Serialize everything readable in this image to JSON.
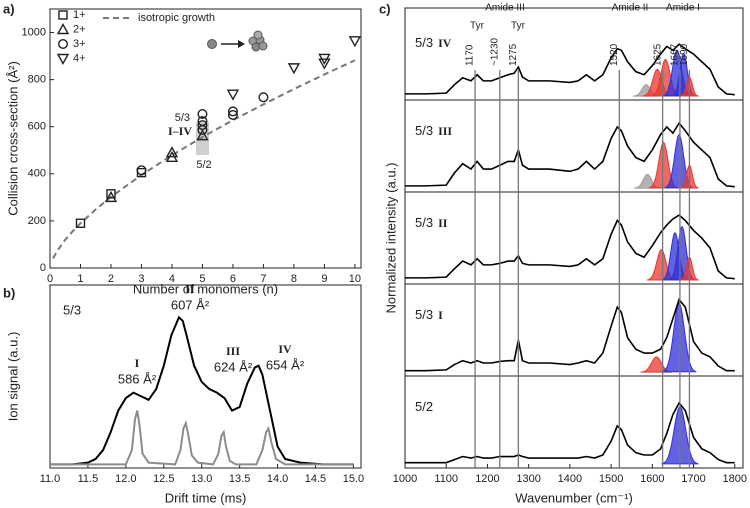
{
  "chart_data": [
    {
      "type": "scatter",
      "panel_label": "a)",
      "xlabel": "Number of monomers (n)",
      "ylabel": "Collision cross-section (Å²)",
      "xlim": [
        0,
        10.2
      ],
      "ylim": [
        0,
        1100
      ],
      "xticks": [
        0,
        1,
        2,
        3,
        4,
        5,
        6,
        7,
        8,
        9,
        10
      ],
      "yticks": [
        0,
        200,
        400,
        600,
        800,
        1000
      ],
      "legend": "upper left",
      "series": [
        {
          "name": "1+",
          "marker": "square",
          "color": "#222222",
          "x": [
            1,
            2,
            3
          ],
          "values": [
            190,
            315,
            405
          ]
        },
        {
          "name": "2+",
          "marker": "triangle-up",
          "color": "#222222",
          "x": [
            2,
            4,
            4,
            5
          ],
          "values": [
            300,
            490,
            470,
            562
          ]
        },
        {
          "name": "3+",
          "marker": "circle",
          "color": "#222222",
          "x": [
            3,
            5,
            5,
            5,
            5,
            6,
            6,
            7
          ],
          "values": [
            415,
            586,
            607,
            624,
            654,
            650,
            665,
            725
          ]
        },
        {
          "name": "4+",
          "marker": "triangle-down",
          "color": "#222222",
          "x": [
            6,
            8,
            9,
            9,
            10
          ],
          "values": [
            738,
            850,
            870,
            890,
            965
          ]
        }
      ],
      "fit": {
        "name": "isotropic growth",
        "color": "#777777",
        "x": [
          0.1,
          0.25,
          0.5,
          0.75,
          1,
          1.5,
          2,
          3,
          4,
          5,
          6,
          7,
          8,
          9,
          10
        ],
        "values": [
          41,
          75,
          120,
          157,
          190,
          249,
          302,
          395,
          479,
          556,
          628,
          695,
          760,
          822,
          882
        ]
      },
      "annotations": [
        "5/3",
        "I–IV",
        "5/2"
      ]
    },
    {
      "type": "line",
      "panel_label": "b)",
      "xlabel": "Drift time (ms)",
      "ylabel": "Ion signal (a.u.)",
      "xlim": [
        11,
        15.1
      ],
      "ylim": [
        -0.02,
        1
      ],
      "xticks": [
        {
          "value": 11,
          "label": "11.0"
        },
        {
          "value": 11.5,
          "label": "11.5"
        },
        {
          "value": 12,
          "label": "12.0"
        },
        {
          "value": 12.5,
          "label": "12.5"
        },
        {
          "value": 13,
          "label": "13.0"
        },
        {
          "value": 13.5,
          "label": "13.5"
        },
        {
          "value": 14,
          "label": "14.0"
        },
        {
          "value": 14.5,
          "label": "14.5"
        },
        {
          "value": 15,
          "label": "15.0"
        }
      ],
      "sample": "5/3",
      "series": [
        {
          "color": "#000000",
          "x": [
            11.0,
            11.3,
            11.5,
            11.6,
            11.7,
            11.8,
            11.9,
            12.0,
            12.1,
            12.2,
            12.3,
            12.4,
            12.5,
            12.6,
            12.7,
            12.75,
            12.8,
            12.9,
            13.0,
            13.1,
            13.2,
            13.3,
            13.4,
            13.5,
            13.6,
            13.7,
            13.75,
            13.8,
            13.9,
            14.0,
            14.1,
            14.3,
            14.6,
            15.0
          ],
          "values": [
            0,
            0,
            0.01,
            0.03,
            0.08,
            0.18,
            0.3,
            0.37,
            0.4,
            0.38,
            0.36,
            0.42,
            0.55,
            0.72,
            0.82,
            0.8,
            0.72,
            0.55,
            0.46,
            0.42,
            0.4,
            0.37,
            0.3,
            0.32,
            0.45,
            0.54,
            0.55,
            0.5,
            0.3,
            0.1,
            0.03,
            0.01,
            0,
            0
          ]
        },
        {
          "color": "#8c8c8c",
          "x": [
            11.0,
            12.0,
            12.08,
            12.12,
            12.15,
            12.18,
            12.22,
            12.3,
            12.65,
            12.72,
            12.76,
            12.79,
            12.82,
            12.87,
            12.95,
            13.15,
            13.22,
            13.26,
            13.29,
            13.32,
            13.37,
            13.45,
            13.72,
            13.8,
            13.85,
            13.88,
            13.92,
            13.98,
            14.1,
            15.0
          ],
          "values": [
            0,
            0,
            0.08,
            0.25,
            0.3,
            0.22,
            0.06,
            0.01,
            0,
            0.08,
            0.2,
            0.23,
            0.17,
            0.05,
            0.01,
            0,
            0.06,
            0.16,
            0.18,
            0.1,
            0.02,
            0,
            0,
            0.08,
            0.18,
            0.2,
            0.12,
            0.03,
            0,
            0
          ]
        }
      ],
      "peaks": [
        {
          "label": "I",
          "ccs": "586 Å²"
        },
        {
          "label": "II",
          "ccs": "607 Å²"
        },
        {
          "label": "III",
          "ccs": "624 Å²"
        },
        {
          "label": "IV",
          "ccs": "654 Å²"
        }
      ]
    },
    {
      "type": "spectra",
      "panel_label": "c)",
      "xlabel": "Wavenumber (cm⁻¹)",
      "ylabel": "Normalized intensity (a.u.)",
      "xlim": [
        1000,
        1820
      ],
      "ylim": [
        -0.05,
        1.1
      ],
      "xticks": [
        1000,
        1100,
        1200,
        1300,
        1400,
        1500,
        1600,
        1700,
        1800
      ],
      "band_lines": [
        1170,
        {
          "value": 1230,
          "label": "~1230"
        },
        1275,
        1520,
        1625,
        1667,
        1690
      ],
      "band_groups": [
        "Tyr",
        "Amide III",
        "Tyr",
        "Amide II",
        "Amide I"
      ],
      "x": [
        1000,
        1050,
        1100,
        1120,
        1140,
        1160,
        1175,
        1190,
        1210,
        1230,
        1250,
        1265,
        1275,
        1285,
        1300,
        1350,
        1400,
        1420,
        1440,
        1460,
        1480,
        1500,
        1515,
        1525,
        1540,
        1560,
        1580,
        1600,
        1620,
        1635,
        1650,
        1665,
        1680,
        1700,
        1720,
        1740,
        1760,
        1780,
        1800
      ],
      "panels": [
        {
          "sample": "5/3",
          "conformer": "IV",
          "values": [
            0.03,
            0.03,
            0.04,
            0.15,
            0.24,
            0.2,
            0.28,
            0.2,
            0.2,
            0.24,
            0.28,
            0.3,
            0.38,
            0.25,
            0.2,
            0.2,
            0.18,
            0.2,
            0.28,
            0.2,
            0.28,
            0.5,
            0.62,
            0.6,
            0.45,
            0.32,
            0.28,
            0.4,
            0.55,
            0.65,
            0.6,
            0.68,
            0.62,
            0.55,
            0.45,
            0.35,
            0.12,
            0.03,
            0.02
          ],
          "components": [
            {
              "center": 1585,
              "height": 0.15,
              "width": 10,
              "color": "#9a9a9a"
            },
            {
              "center": 1612,
              "height": 0.35,
              "width": 11,
              "color": "#e8372f"
            },
            {
              "center": 1632,
              "height": 0.48,
              "width": 11,
              "color": "#e8372f"
            },
            {
              "center": 1660,
              "height": 0.6,
              "width": 11,
              "color": "#2f2fd8"
            },
            {
              "center": 1676,
              "height": 0.55,
              "width": 9,
              "color": "#2f2fd8"
            },
            {
              "center": 1690,
              "height": 0.25,
              "width": 7,
              "color": "#e8372f"
            }
          ]
        },
        {
          "sample": "5/3",
          "conformer": "III",
          "values": [
            0.03,
            0.03,
            0.04,
            0.2,
            0.32,
            0.25,
            0.35,
            0.25,
            0.25,
            0.3,
            0.35,
            0.35,
            0.5,
            0.3,
            0.25,
            0.25,
            0.22,
            0.25,
            0.35,
            0.25,
            0.35,
            0.65,
            0.8,
            0.75,
            0.55,
            0.4,
            0.35,
            0.5,
            0.7,
            0.8,
            0.72,
            0.85,
            0.75,
            0.6,
            0.5,
            0.4,
            0.12,
            0.03,
            0.02
          ],
          "components": [
            {
              "center": 1588,
              "height": 0.18,
              "width": 10,
              "color": "#9a9a9a"
            },
            {
              "center": 1627,
              "height": 0.6,
              "width": 11,
              "color": "#e8372f"
            },
            {
              "center": 1665,
              "height": 0.7,
              "width": 11,
              "color": "#2f2fd8"
            },
            {
              "center": 1690,
              "height": 0.3,
              "width": 7,
              "color": "#e8372f"
            }
          ]
        },
        {
          "sample": "5/3",
          "conformer": "II",
          "values": [
            0.03,
            0.03,
            0.04,
            0.15,
            0.25,
            0.2,
            0.28,
            0.2,
            0.2,
            0.22,
            0.25,
            0.25,
            0.32,
            0.22,
            0.2,
            0.2,
            0.18,
            0.2,
            0.28,
            0.2,
            0.28,
            0.6,
            0.78,
            0.72,
            0.5,
            0.35,
            0.3,
            0.45,
            0.62,
            0.72,
            0.8,
            0.85,
            0.78,
            0.65,
            0.55,
            0.42,
            0.12,
            0.03,
            0.02
          ],
          "components": [
            {
              "center": 1622,
              "height": 0.4,
              "width": 11,
              "color": "#e8372f"
            },
            {
              "center": 1655,
              "height": 0.62,
              "width": 10,
              "color": "#2f2fd8"
            },
            {
              "center": 1672,
              "height": 0.7,
              "width": 10,
              "color": "#2f2fd8"
            },
            {
              "center": 1690,
              "height": 0.3,
              "width": 7,
              "color": "#e8372f"
            }
          ]
        },
        {
          "sample": "5/3",
          "conformer": "I",
          "values": [
            0.02,
            0.02,
            0.03,
            0.1,
            0.15,
            0.12,
            0.15,
            0.12,
            0.12,
            0.14,
            0.15,
            0.15,
            0.42,
            0.15,
            0.12,
            0.12,
            0.1,
            0.12,
            0.15,
            0.12,
            0.25,
            0.6,
            0.85,
            0.78,
            0.45,
            0.3,
            0.25,
            0.25,
            0.3,
            0.45,
            0.7,
            0.95,
            0.85,
            0.4,
            0.25,
            0.2,
            0.08,
            0.02,
            0.02
          ],
          "components": [
            {
              "center": 1610,
              "height": 0.2,
              "width": 12,
              "color": "#e8372f"
            },
            {
              "center": 1665,
              "height": 0.9,
              "width": 13,
              "color": "#2f2fd8"
            }
          ]
        },
        {
          "sample": "5/2",
          "values": [
            0.02,
            0.02,
            0.02,
            0.06,
            0.1,
            0.08,
            0.1,
            0.08,
            0.08,
            0.1,
            0.1,
            0.1,
            0.12,
            0.1,
            0.08,
            0.08,
            0.08,
            0.08,
            0.1,
            0.08,
            0.12,
            0.3,
            0.5,
            0.45,
            0.25,
            0.15,
            0.12,
            0.12,
            0.2,
            0.4,
            0.65,
            0.8,
            0.7,
            0.35,
            0.2,
            0.15,
            0.06,
            0.02,
            0.02
          ],
          "components": [
            {
              "center": 1667,
              "height": 0.75,
              "width": 14,
              "color": "#2f2fd8"
            }
          ]
        }
      ]
    }
  ]
}
